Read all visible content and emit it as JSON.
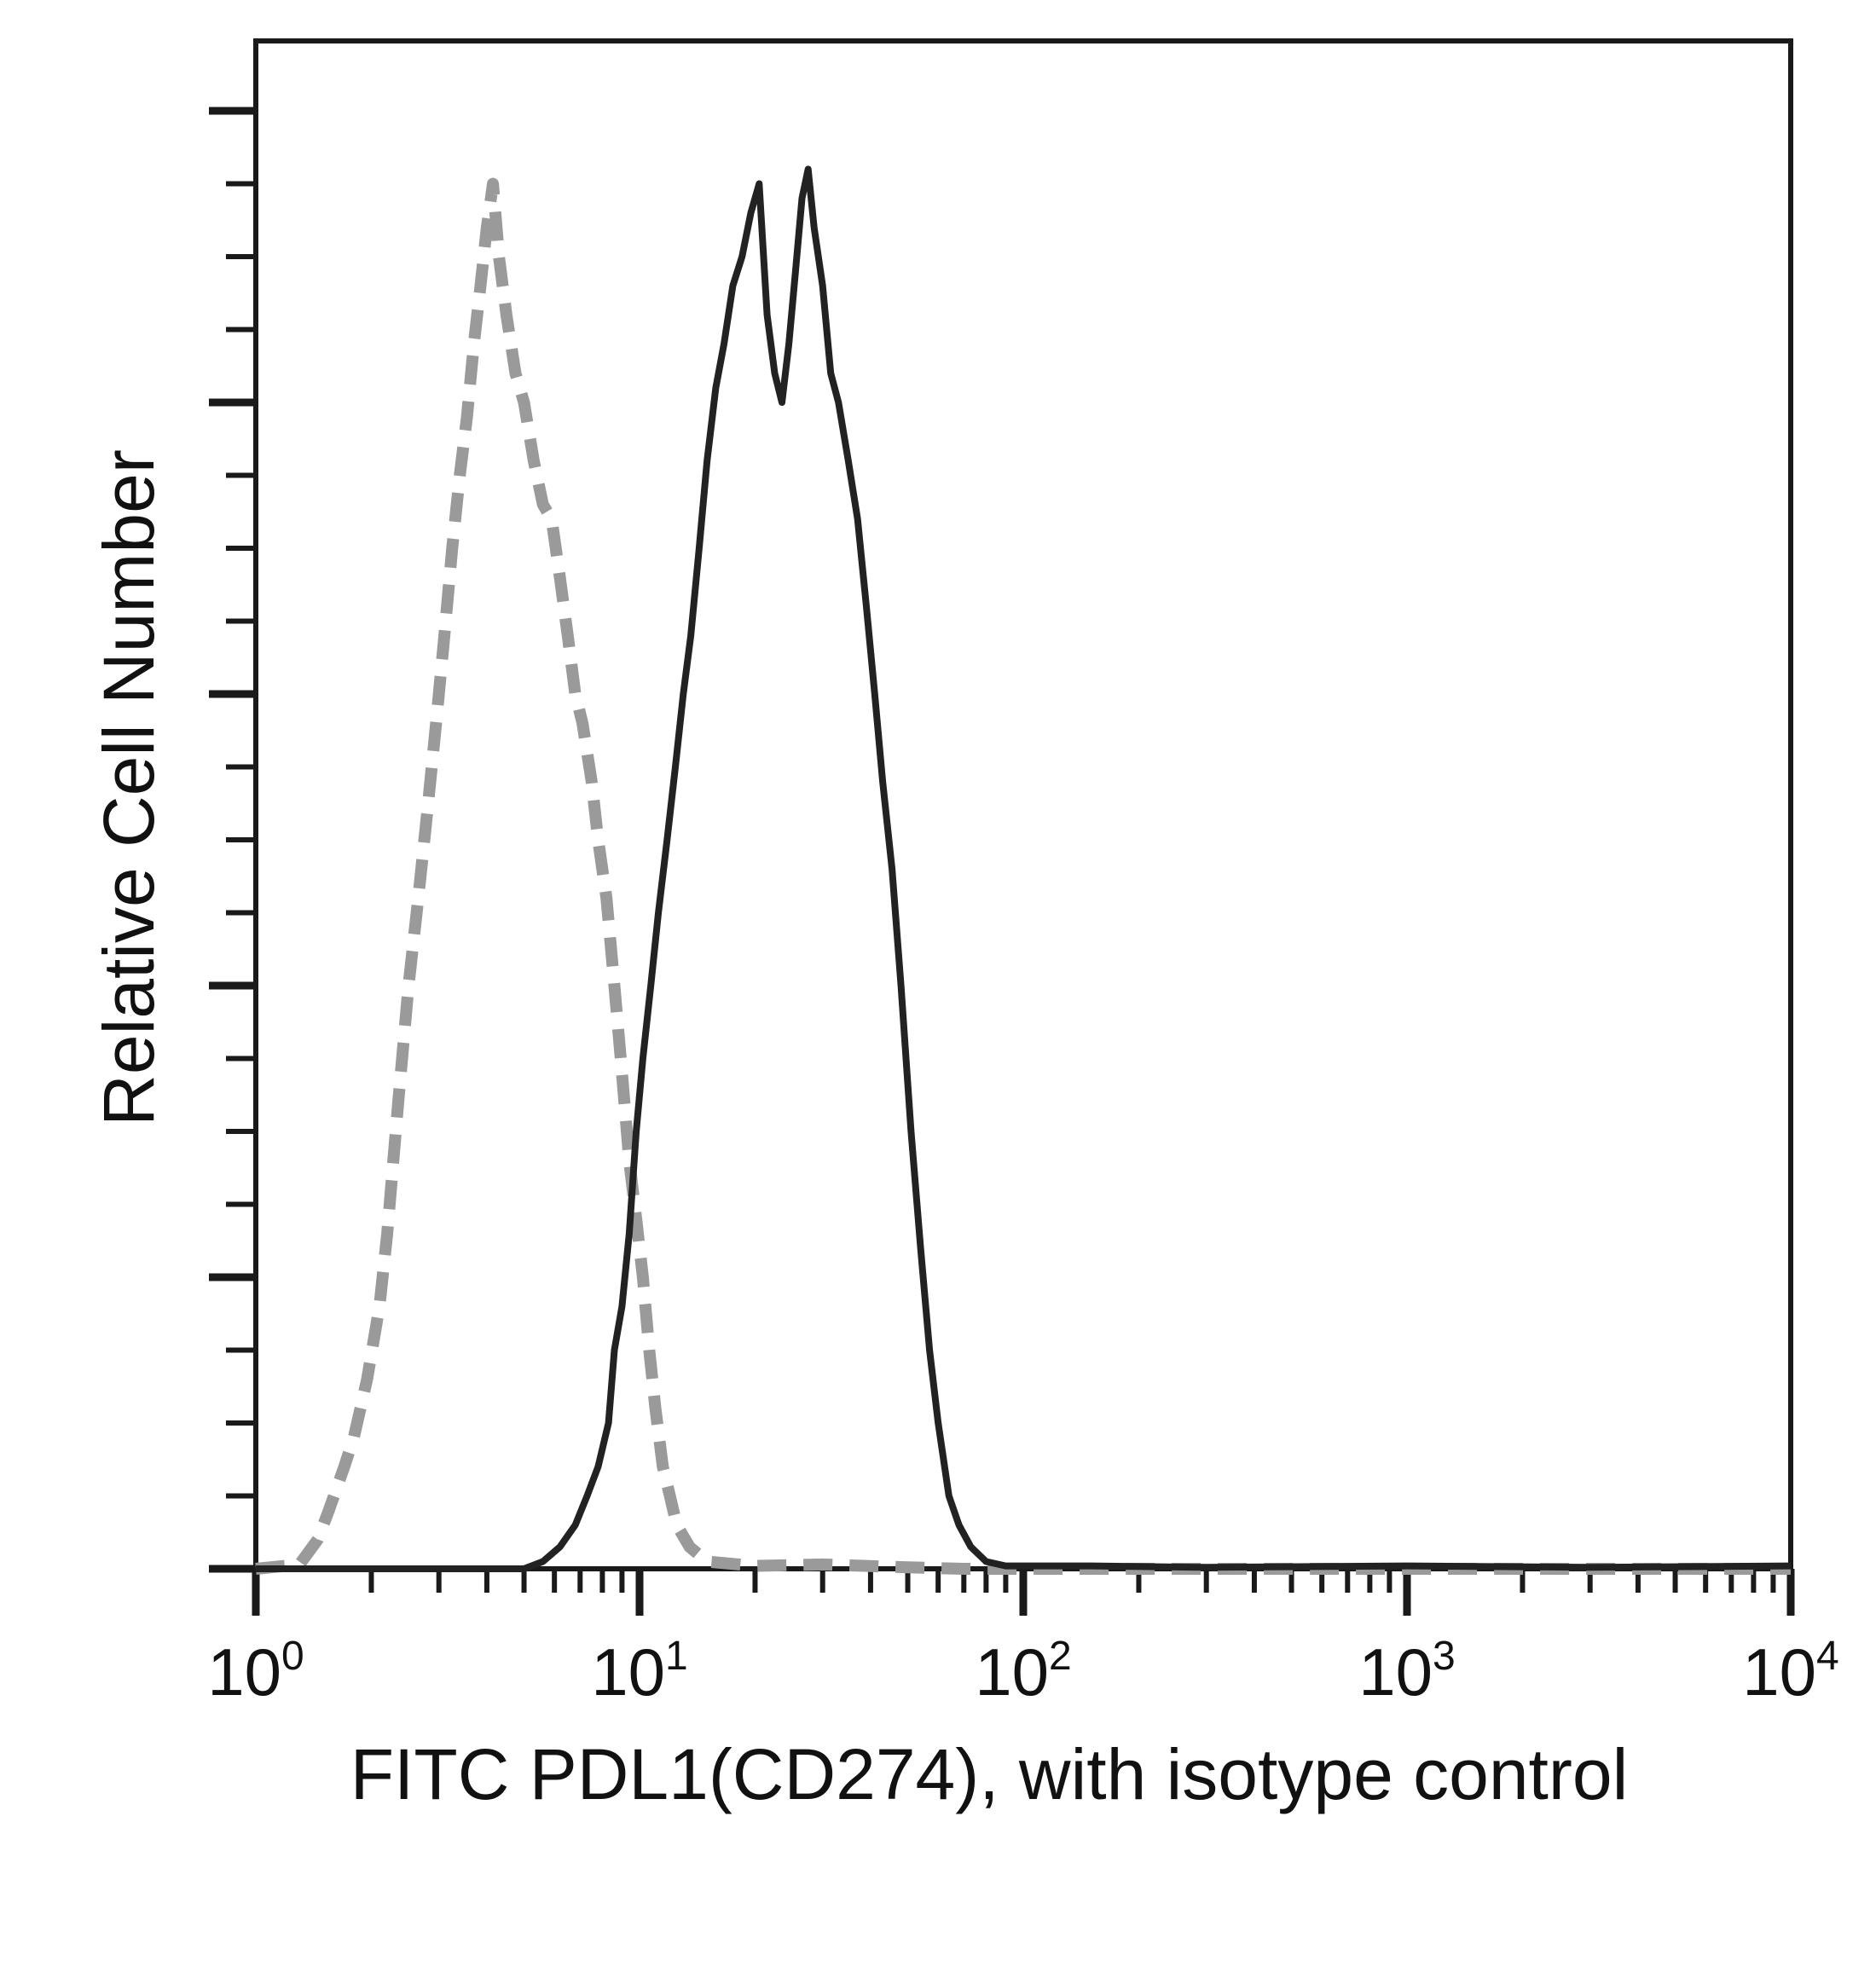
{
  "chart_data": {
    "type": "line",
    "title": "",
    "xlabel": "FITC PDL1(CD274), with isotype control",
    "ylabel": "Relative Cell Number",
    "x_scale": "log",
    "xlim": [
      1,
      10000
    ],
    "ylim": [
      0,
      100
    ],
    "x_tick_labels": [
      {
        "value": 1,
        "base": "10",
        "exp": "0"
      },
      {
        "value": 10,
        "base": "10",
        "exp": "1"
      },
      {
        "value": 100,
        "base": "10",
        "exp": "2"
      },
      {
        "value": 1000,
        "base": "10",
        "exp": "3"
      },
      {
        "value": 10000,
        "base": "10",
        "exp": "4"
      }
    ],
    "y_tick_labels": "none",
    "grid": false,
    "legend": "none",
    "series": [
      {
        "style": "dashed",
        "color": "#9a9a9a",
        "points": [
          [
            1.0,
            0
          ],
          [
            1.3,
            0.3
          ],
          [
            1.45,
            2
          ],
          [
            1.55,
            4
          ],
          [
            1.7,
            7
          ],
          [
            1.8,
            9
          ],
          [
            1.95,
            13
          ],
          [
            2.1,
            18
          ],
          [
            2.2,
            23
          ],
          [
            2.35,
            32
          ],
          [
            2.5,
            40
          ],
          [
            2.65,
            46
          ],
          [
            2.8,
            52
          ],
          [
            2.95,
            58
          ],
          [
            3.1,
            64
          ],
          [
            3.25,
            70
          ],
          [
            3.4,
            75
          ],
          [
            3.55,
            79
          ],
          [
            3.7,
            84
          ],
          [
            3.85,
            88
          ],
          [
            4.0,
            92
          ],
          [
            4.15,
            95
          ],
          [
            4.3,
            90
          ],
          [
            4.5,
            86
          ],
          [
            4.75,
            82
          ],
          [
            5.0,
            80
          ],
          [
            5.3,
            76
          ],
          [
            5.6,
            73
          ],
          [
            5.9,
            72
          ],
          [
            6.2,
            68
          ],
          [
            6.5,
            64
          ],
          [
            6.8,
            60
          ],
          [
            7.1,
            58
          ],
          [
            7.5,
            54
          ],
          [
            7.8,
            50
          ],
          [
            8.2,
            46
          ],
          [
            8.6,
            40
          ],
          [
            9.0,
            34
          ],
          [
            9.4,
            28
          ],
          [
            9.8,
            24
          ],
          [
            10.2,
            20
          ],
          [
            10.6,
            15
          ],
          [
            11.0,
            11
          ],
          [
            11.5,
            7
          ],
          [
            12.0,
            5
          ],
          [
            12.5,
            3
          ],
          [
            13.5,
            1.5
          ],
          [
            15.0,
            0.5
          ],
          [
            20.0,
            0.2
          ],
          [
            30.0,
            0.3
          ],
          [
            50.0,
            0.1
          ],
          [
            70.0,
            0
          ],
          [
            100.0,
            0
          ],
          [
            10000.0,
            0
          ]
        ]
      },
      {
        "style": "solid",
        "color": "#222222",
        "points": [
          [
            1.0,
            0
          ],
          [
            5.0,
            0
          ],
          [
            5.6,
            0.5
          ],
          [
            6.2,
            1.5
          ],
          [
            6.8,
            3
          ],
          [
            7.3,
            5
          ],
          [
            7.8,
            7
          ],
          [
            8.3,
            10
          ],
          [
            8.6,
            15
          ],
          [
            9.0,
            18
          ],
          [
            9.4,
            23
          ],
          [
            9.8,
            30
          ],
          [
            10.2,
            35
          ],
          [
            10.7,
            40
          ],
          [
            11.2,
            45
          ],
          [
            11.8,
            50
          ],
          [
            12.4,
            55
          ],
          [
            13.0,
            60
          ],
          [
            13.6,
            64
          ],
          [
            14.3,
            70
          ],
          [
            15.0,
            76
          ],
          [
            15.8,
            81
          ],
          [
            16.6,
            84
          ],
          [
            17.5,
            88
          ],
          [
            18.5,
            90
          ],
          [
            19.5,
            93
          ],
          [
            20.5,
            95
          ],
          [
            21.5,
            86
          ],
          [
            22.5,
            82
          ],
          [
            23.5,
            80
          ],
          [
            24.5,
            84
          ],
          [
            25.5,
            89
          ],
          [
            26.5,
            94
          ],
          [
            27.5,
            96
          ],
          [
            28.5,
            92
          ],
          [
            30.0,
            88
          ],
          [
            31.5,
            82
          ],
          [
            33.0,
            80
          ],
          [
            35.0,
            76
          ],
          [
            37.0,
            72
          ],
          [
            39.0,
            66
          ],
          [
            41.0,
            60
          ],
          [
            43.0,
            54
          ],
          [
            45.5,
            48
          ],
          [
            48.0,
            40
          ],
          [
            51.0,
            30
          ],
          [
            54.0,
            22
          ],
          [
            57.0,
            15
          ],
          [
            60.0,
            10
          ],
          [
            64.0,
            5
          ],
          [
            68.0,
            3
          ],
          [
            73.0,
            1.5
          ],
          [
            80.0,
            0.5
          ],
          [
            90.0,
            0.2
          ],
          [
            150.0,
            0.2
          ],
          [
            300.0,
            0.1
          ],
          [
            1000.0,
            0.2
          ],
          [
            3000.0,
            0.1
          ],
          [
            10000.0,
            0.2
          ]
        ]
      }
    ]
  }
}
